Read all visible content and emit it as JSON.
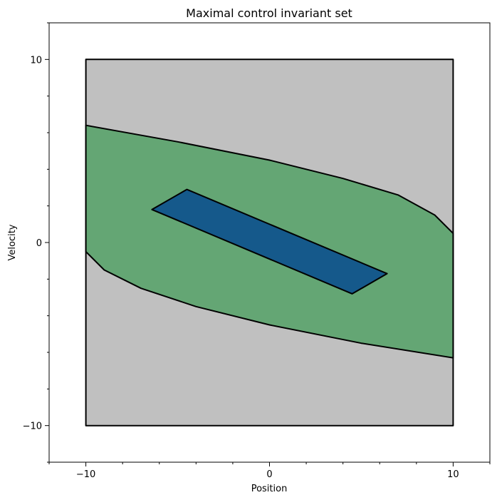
{
  "chart_data": {
    "type": "area",
    "title": "Maximal control invariant set",
    "xlabel": "Position",
    "ylabel": "Velocity",
    "xlim": [
      -12,
      12
    ],
    "ylim": [
      -12,
      12
    ],
    "xticks": [
      -10,
      0,
      10
    ],
    "yticks": [
      -10,
      0,
      10
    ],
    "xtick_labels": [
      "−10",
      "0",
      "10"
    ],
    "ytick_labels": [
      "−10",
      "0",
      "10"
    ],
    "grid": false,
    "regions": [
      {
        "color": "#c0c0c0",
        "points": [
          [
            -10,
            -10
          ],
          [
            10,
            -10
          ],
          [
            10,
            10
          ],
          [
            -10,
            10
          ]
        ]
      },
      {
        "color": "#64a674",
        "points": [
          [
            -10,
            6.4
          ],
          [
            -5,
            5.5
          ],
          [
            0,
            4.5
          ],
          [
            4,
            3.5
          ],
          [
            7,
            2.6
          ],
          [
            9,
            1.5
          ],
          [
            10,
            0.5
          ],
          [
            10,
            -6.3
          ],
          [
            5,
            -5.5
          ],
          [
            0,
            -4.5
          ],
          [
            -4,
            -3.5
          ],
          [
            -7,
            -2.5
          ],
          [
            -9,
            -1.5
          ],
          [
            -10,
            -0.5
          ]
        ]
      },
      {
        "color": "#15598b",
        "points": [
          [
            -4.5,
            2.9
          ],
          [
            6.4,
            -1.7
          ],
          [
            4.5,
            -2.8
          ],
          [
            -6.4,
            1.8
          ]
        ]
      }
    ]
  }
}
